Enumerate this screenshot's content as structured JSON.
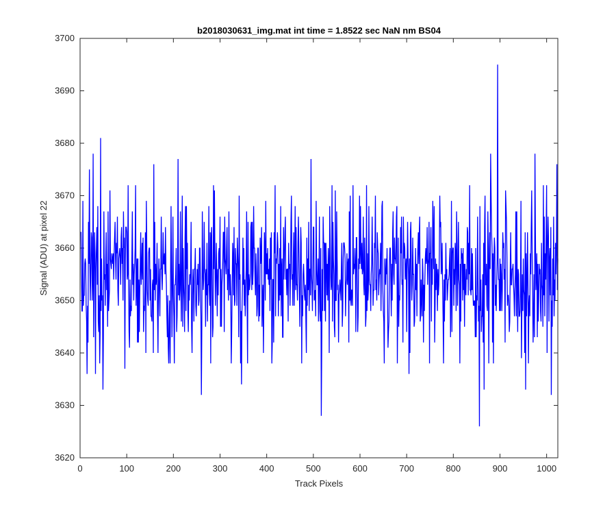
{
  "chart_data": {
    "type": "line",
    "title": "b2018030631_img.mat int time = 1.8522 sec  NaN nm BS04",
    "xlabel": "Track Pixels",
    "ylabel": "Signal (ADU) at pixel 22",
    "xlim": [
      0,
      1024
    ],
    "ylim": [
      3620,
      3700
    ],
    "xticks": [
      0,
      100,
      200,
      300,
      400,
      500,
      600,
      700,
      800,
      900,
      1000
    ],
    "yticks": [
      3620,
      3630,
      3640,
      3650,
      3660,
      3670,
      3680,
      3690,
      3700
    ],
    "grid": false,
    "box": true,
    "series": [
      {
        "color": "#0000ff",
        "n_points": 1024,
        "x_start": 1,
        "x_step": 1,
        "noise_mean": 3655,
        "noise_std": 7,
        "seed": 22,
        "highlight_points": [
          {
            "x": 6,
            "y": 3669
          },
          {
            "x": 15,
            "y": 3636
          },
          {
            "x": 20,
            "y": 3675
          },
          {
            "x": 28,
            "y": 3678
          },
          {
            "x": 33,
            "y": 3636
          },
          {
            "x": 42,
            "y": 3638
          },
          {
            "x": 44,
            "y": 3681
          },
          {
            "x": 49,
            "y": 3633
          },
          {
            "x": 96,
            "y": 3637
          },
          {
            "x": 158,
            "y": 3676
          },
          {
            "x": 167,
            "y": 3640
          },
          {
            "x": 193,
            "y": 3638
          },
          {
            "x": 202,
            "y": 3638
          },
          {
            "x": 210,
            "y": 3677
          },
          {
            "x": 260,
            "y": 3632
          },
          {
            "x": 346,
            "y": 3634
          },
          {
            "x": 495,
            "y": 3677
          },
          {
            "x": 517,
            "y": 3628
          },
          {
            "x": 542,
            "y": 3665
          },
          {
            "x": 633,
            "y": 3670
          },
          {
            "x": 705,
            "y": 3636
          },
          {
            "x": 760,
            "y": 3642
          },
          {
            "x": 856,
            "y": 3626
          },
          {
            "x": 866,
            "y": 3633
          },
          {
            "x": 880,
            "y": 3678
          },
          {
            "x": 895,
            "y": 3695
          },
          {
            "x": 955,
            "y": 3633
          },
          {
            "x": 975,
            "y": 3678
          },
          {
            "x": 1010,
            "y": 3632
          },
          {
            "x": 1022,
            "y": 3676
          }
        ]
      }
    ]
  }
}
